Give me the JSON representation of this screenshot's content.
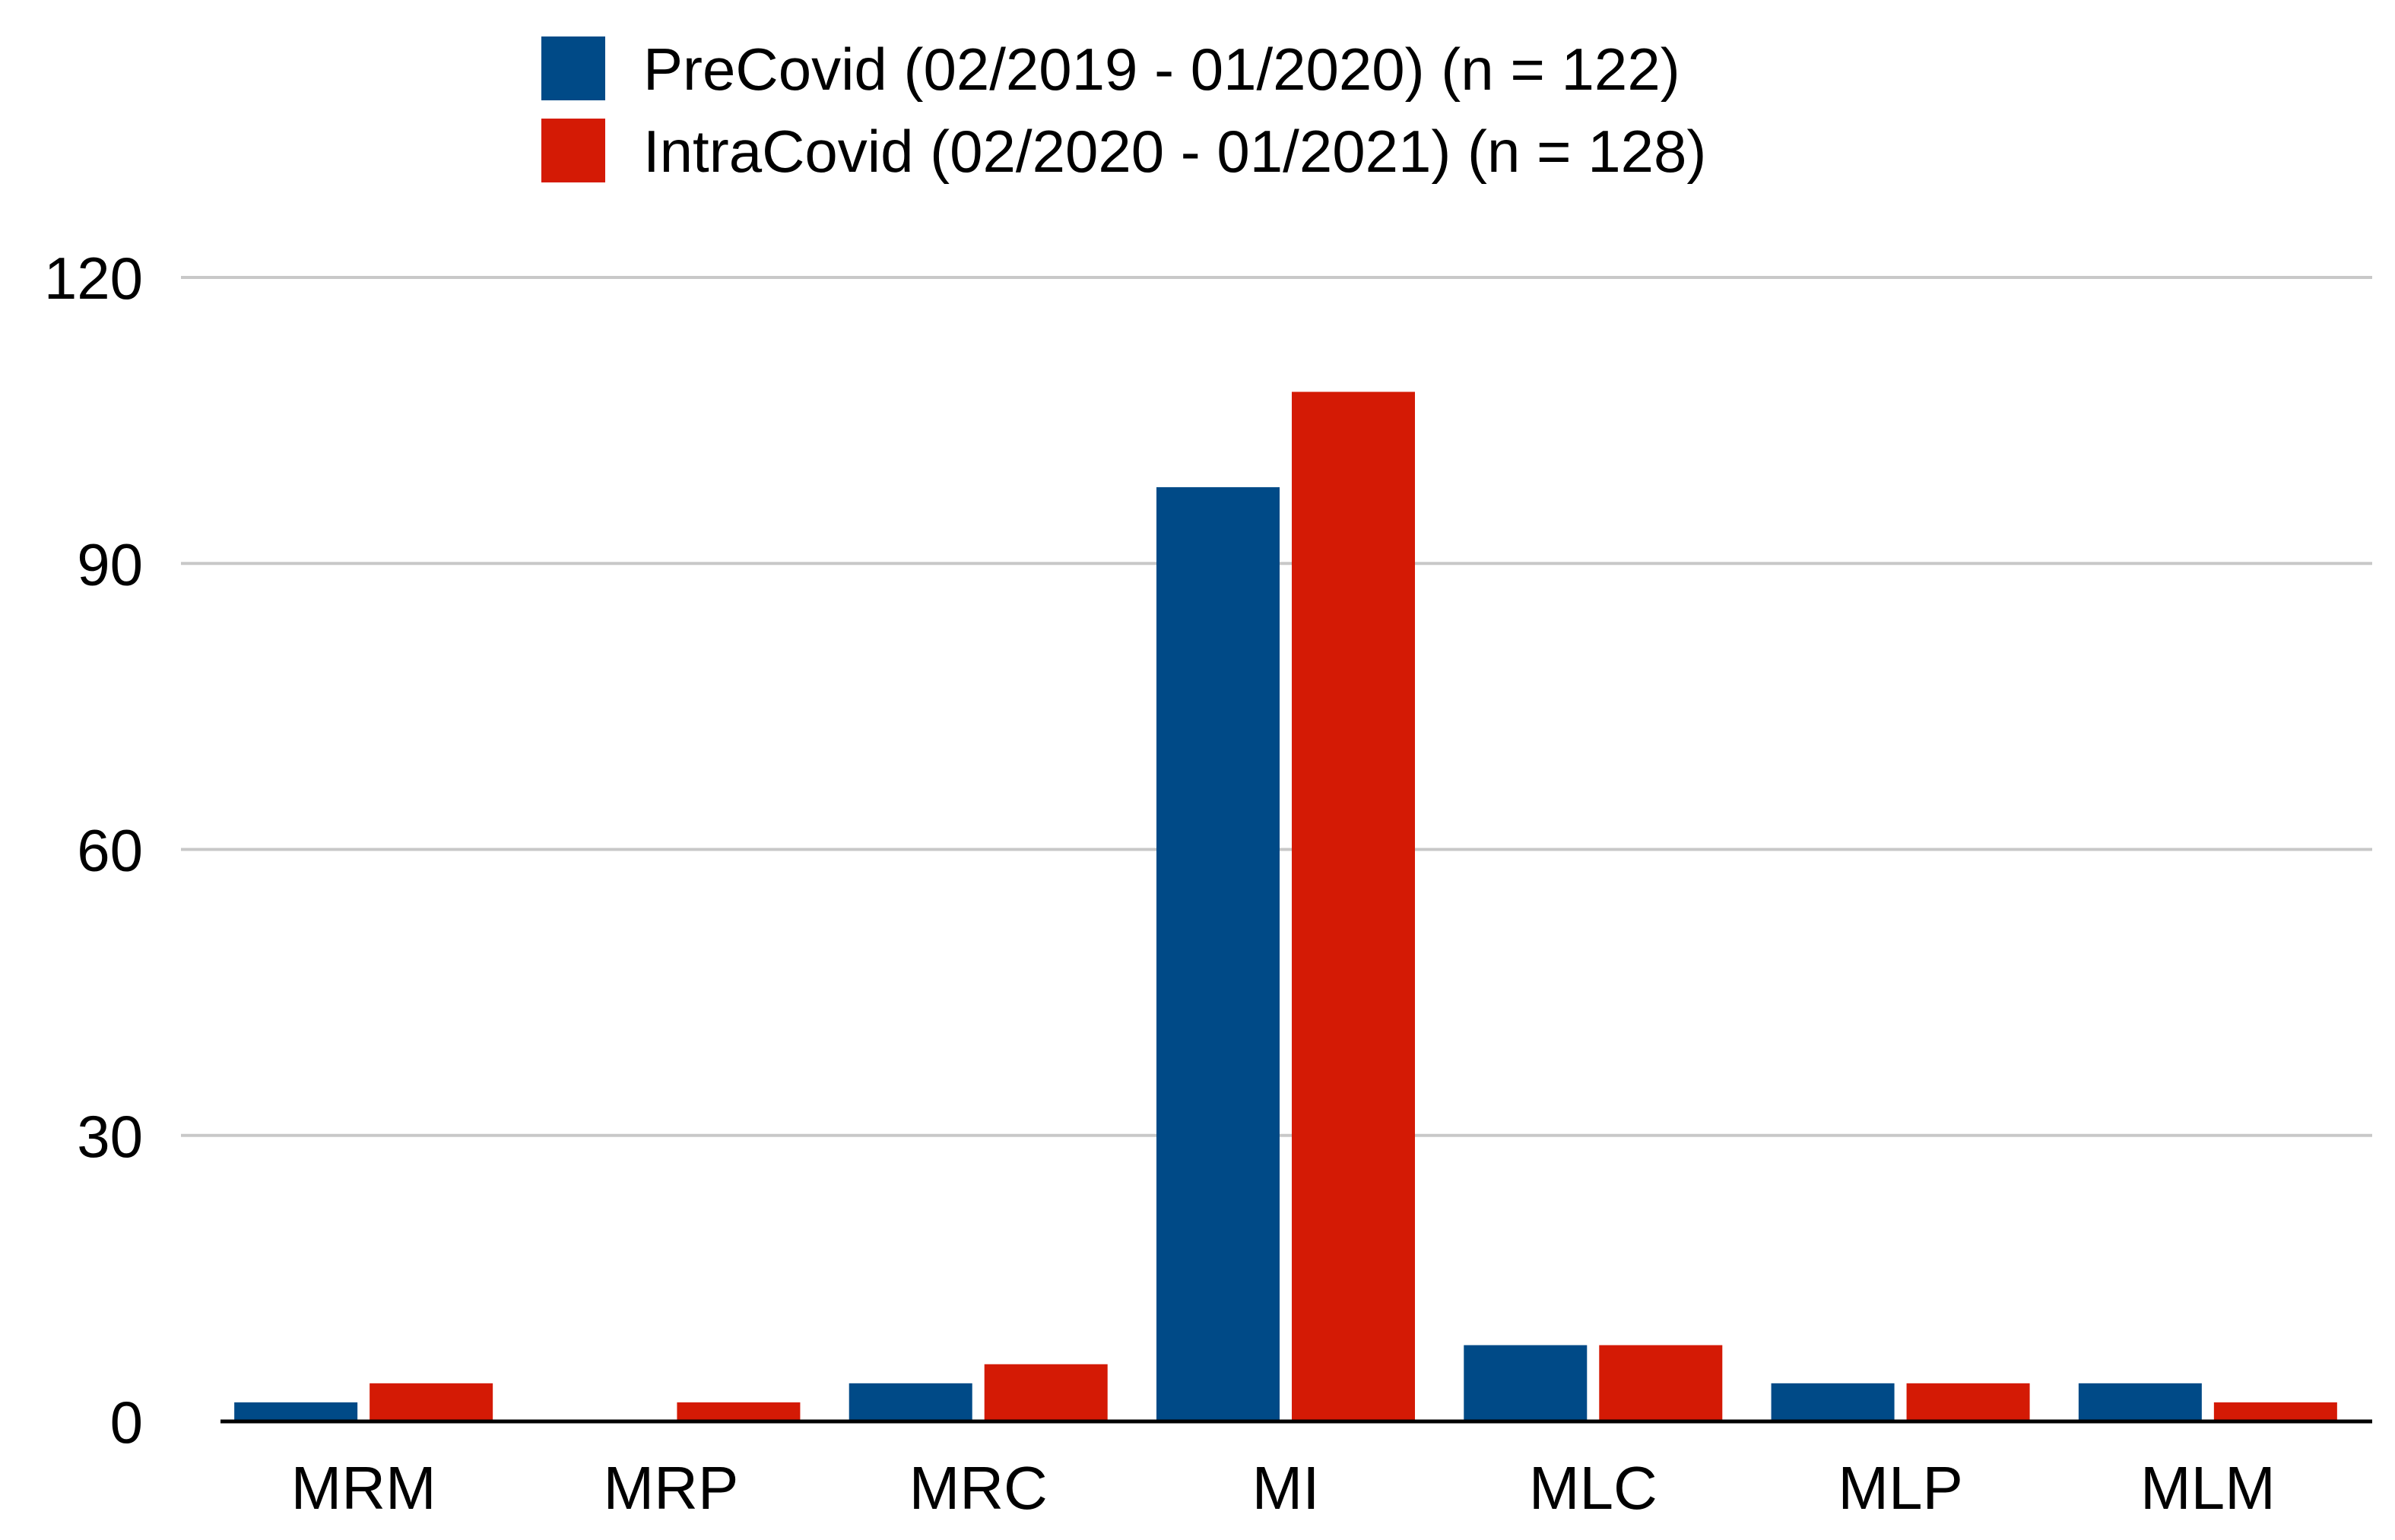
{
  "chart_data": {
    "type": "bar",
    "categories": [
      "MRM",
      "MRP",
      "MRC",
      "MI",
      "MLC",
      "MLP",
      "MLM"
    ],
    "series": [
      {
        "name": "PreCovid (02/2019 - 01/2020) (n = 122)",
        "color": "#004a87",
        "values": [
          2,
          0,
          4,
          98,
          8,
          4,
          4
        ]
      },
      {
        "name": "IntraCovid (02/2020 - 01/2021) (n = 128)",
        "color": "#d41a05",
        "values": [
          4,
          2,
          6,
          108,
          8,
          4,
          2
        ]
      }
    ],
    "title": "",
    "xlabel": "",
    "ylabel": "",
    "ylim": [
      0,
      120
    ],
    "yticks": [
      0,
      30,
      60,
      90,
      120
    ],
    "grid": true,
    "legend_position": "top-center"
  }
}
